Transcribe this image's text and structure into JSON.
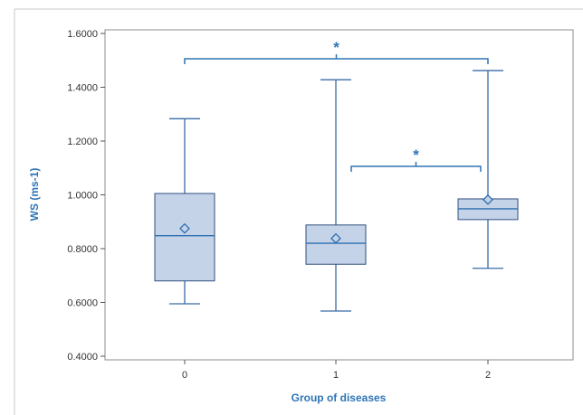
{
  "chart_data": {
    "type": "box",
    "xlabel": "Group of diseases",
    "ylabel": "WS (ms-1)",
    "ylim": [
      0.4,
      1.6
    ],
    "y_ticks": [
      "0.4000",
      "0.6000",
      "0.8000",
      "1.0000",
      "1.2000",
      "1.4000",
      "1.6000"
    ],
    "categories": [
      "0",
      "1",
      "2"
    ],
    "boxes": [
      {
        "category": "0",
        "min": 0.595,
        "q1": 0.68,
        "median": 0.848,
        "q3": 1.005,
        "max": 1.283,
        "mean": 0.875
      },
      {
        "category": "1",
        "min": 0.568,
        "q1": 0.742,
        "median": 0.82,
        "q3": 0.888,
        "max": 1.428,
        "mean": 0.838
      },
      {
        "category": "2",
        "min": 0.727,
        "q1": 0.908,
        "median": 0.948,
        "q3": 0.985,
        "max": 1.462,
        "mean": 0.982
      }
    ],
    "significance": [
      {
        "from": "0",
        "to": "2",
        "label": "*"
      },
      {
        "from": "1",
        "to": "2",
        "label": "*"
      }
    ],
    "grid": false,
    "legend": "none",
    "colors": {
      "box_fill": "#c5d3e8",
      "box_stroke": "#2f4f7f",
      "whisker": "#3a6aa8",
      "median": "#2e6fb0",
      "mean_marker": "#2e6fb0",
      "annotation": "#2e75b6",
      "axis_title": "#2e75b6"
    }
  }
}
